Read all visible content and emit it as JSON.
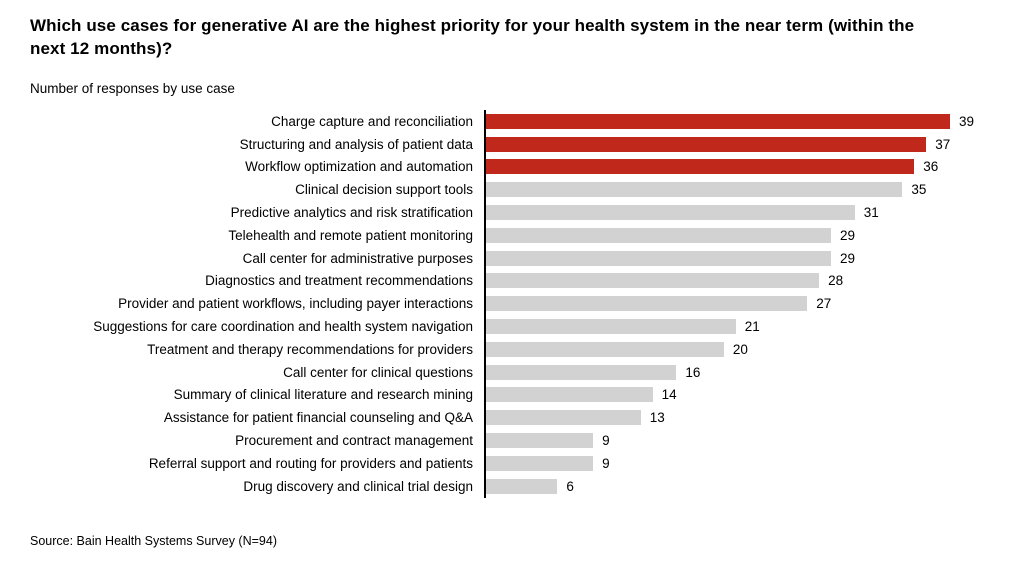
{
  "title": "Which use cases for generative AI are the highest priority for your health system in the near term (within the next 12 months)?",
  "subtitle": "Number of responses by use case",
  "source": "Source: Bain Health Systems Survey (N=94)",
  "colors": {
    "highlight_red": "#c0281c",
    "default_gray": "#d2d2d2",
    "axis_black": "#000000",
    "text": "#000000",
    "background": "#ffffff"
  },
  "chart_data": {
    "type": "bar",
    "orientation": "horizontal",
    "title": "Which use cases for generative AI are the highest priority for your health system in the near term (within the next 12 months)?",
    "subtitle": "Number of responses by use case",
    "xlabel": "",
    "ylabel": "",
    "xlim": [
      0,
      39
    ],
    "grid": false,
    "legend": false,
    "value_labels": true,
    "categories": [
      "Charge capture and reconciliation",
      "Structuring and analysis of patient data",
      "Workflow optimization and automation",
      "Clinical decision support tools",
      "Predictive analytics and risk stratification",
      "Telehealth and remote patient monitoring",
      "Call center for administrative purposes",
      "Diagnostics and treatment recommendations",
      "Provider and patient workflows, including payer interactions",
      "Suggestions for care coordination and health system navigation",
      "Treatment and therapy recommendations for providers",
      "Call center for clinical questions",
      "Summary of clinical literature and research mining",
      "Assistance for patient financial counseling and Q&A",
      "Procurement and contract management",
      "Referral support and routing for providers and patients",
      "Drug discovery and clinical trial design"
    ],
    "values": [
      39,
      37,
      36,
      35,
      31,
      29,
      29,
      28,
      27,
      21,
      20,
      16,
      14,
      13,
      9,
      9,
      6
    ],
    "highlighted": [
      true,
      true,
      true,
      false,
      false,
      false,
      false,
      false,
      false,
      false,
      false,
      false,
      false,
      false,
      false,
      false,
      false
    ]
  }
}
